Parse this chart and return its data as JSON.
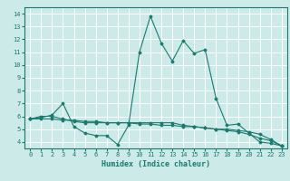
{
  "xlabel": "Humidex (Indice chaleur)",
  "xlim": [
    -0.5,
    23.5
  ],
  "ylim": [
    3.5,
    14.5
  ],
  "xticks": [
    0,
    1,
    2,
    3,
    4,
    5,
    6,
    7,
    8,
    9,
    10,
    11,
    12,
    13,
    14,
    15,
    16,
    17,
    18,
    19,
    20,
    21,
    22,
    23
  ],
  "yticks": [
    4,
    5,
    6,
    7,
    8,
    9,
    10,
    11,
    12,
    13,
    14
  ],
  "bg_color": "#cceae8",
  "line_color": "#1a7a6e",
  "grid_color": "#ffffff",
  "curve1_y": [
    5.8,
    6.0,
    6.0,
    5.8,
    5.6,
    5.5,
    5.5,
    5.5,
    5.5,
    5.5,
    5.5,
    5.5,
    5.5,
    5.5,
    5.3,
    5.2,
    5.1,
    5.0,
    4.9,
    4.8,
    4.6,
    4.3,
    4.1,
    3.7
  ],
  "curve2_y": [
    5.8,
    5.8,
    5.8,
    5.7,
    5.7,
    5.6,
    5.6,
    5.5,
    5.5,
    5.5,
    5.4,
    5.4,
    5.3,
    5.3,
    5.2,
    5.2,
    5.1,
    5.0,
    5.0,
    4.9,
    4.8,
    4.6,
    4.2,
    3.7
  ],
  "curve3_y": [
    5.8,
    5.9,
    6.1,
    7.0,
    5.2,
    4.7,
    4.5,
    4.5,
    3.8,
    5.3,
    11.0,
    13.8,
    11.7,
    10.3,
    11.9,
    10.9,
    11.2,
    7.4,
    5.3,
    5.4,
    4.7,
    4.0,
    3.9,
    3.7
  ]
}
